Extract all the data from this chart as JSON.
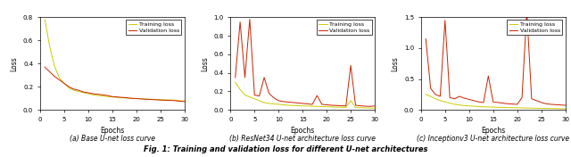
{
  "title": "Fig. 1: Training and validation loss for different U-net architectures",
  "subtitle_a": "(a) Base U-net loss curve",
  "subtitle_b": "(b) ResNet34 U-net architecture loss curve",
  "subtitle_c": "(c) Inceptionv3 U-net architecture loss curve",
  "xlabel": "Epochs",
  "ylabel": "Loss",
  "train_color": "#cccc00",
  "val_color": "#cc2200",
  "legend_train": "Training loss",
  "legend_val": "Validation loss",
  "figsize": [
    6.4,
    1.76
  ],
  "dpi": 100,
  "plot_a_train": [
    0.78,
    0.55,
    0.38,
    0.28,
    0.23,
    0.19,
    0.17,
    0.16,
    0.15,
    0.14,
    0.13,
    0.125,
    0.12,
    0.115,
    0.112,
    0.108,
    0.105,
    0.102,
    0.1,
    0.098,
    0.096,
    0.094,
    0.092,
    0.09,
    0.088,
    0.087,
    0.086,
    0.085,
    0.08,
    0.078
  ],
  "plot_a_val": [
    0.37,
    0.33,
    0.29,
    0.26,
    0.23,
    0.2,
    0.18,
    0.17,
    0.155,
    0.148,
    0.14,
    0.135,
    0.13,
    0.125,
    0.115,
    0.112,
    0.108,
    0.105,
    0.1,
    0.098,
    0.095,
    0.092,
    0.09,
    0.088,
    0.085,
    0.083,
    0.082,
    0.08,
    0.075,
    0.072
  ],
  "plot_a_ylim": [
    0.0,
    0.8
  ],
  "plot_a_yticks": [
    0.0,
    0.2,
    0.4,
    0.6,
    0.8
  ],
  "plot_b_train": [
    0.3,
    0.22,
    0.16,
    0.14,
    0.12,
    0.1,
    0.08,
    0.07,
    0.065,
    0.06,
    0.055,
    0.05,
    0.048,
    0.045,
    0.043,
    0.042,
    0.04,
    0.038,
    0.036,
    0.034,
    0.032,
    0.03,
    0.028,
    0.027,
    0.1,
    0.026,
    0.024,
    0.022,
    0.02,
    0.018
  ],
  "plot_b_val": [
    0.35,
    0.95,
    0.35,
    0.98,
    0.16,
    0.15,
    0.35,
    0.18,
    0.13,
    0.1,
    0.09,
    0.085,
    0.08,
    0.075,
    0.07,
    0.065,
    0.06,
    0.155,
    0.06,
    0.055,
    0.05,
    0.048,
    0.045,
    0.043,
    0.48,
    0.05,
    0.045,
    0.04,
    0.038,
    0.042
  ],
  "plot_b_ylim": [
    0.0,
    1.0
  ],
  "plot_b_yticks": [
    0.0,
    0.2,
    0.4,
    0.6,
    0.8,
    1.0
  ],
  "plot_c_train": [
    0.25,
    0.22,
    0.18,
    0.15,
    0.13,
    0.11,
    0.09,
    0.08,
    0.07,
    0.065,
    0.06,
    0.055,
    0.05,
    0.048,
    0.045,
    0.042,
    0.04,
    0.038,
    0.036,
    0.034,
    0.032,
    0.03,
    0.028,
    0.026,
    0.025,
    0.024,
    0.023,
    0.022,
    0.02,
    0.019
  ],
  "plot_c_val": [
    1.15,
    0.35,
    0.25,
    0.22,
    1.45,
    0.2,
    0.18,
    0.22,
    0.19,
    0.17,
    0.15,
    0.13,
    0.12,
    0.55,
    0.13,
    0.12,
    0.11,
    0.1,
    0.095,
    0.09,
    0.2,
    1.6,
    0.18,
    0.15,
    0.12,
    0.1,
    0.09,
    0.085,
    0.08,
    0.075
  ],
  "plot_c_ylim": [
    0.0,
    1.5
  ],
  "plot_c_yticks": [
    0.0,
    0.5,
    1.0,
    1.5
  ]
}
